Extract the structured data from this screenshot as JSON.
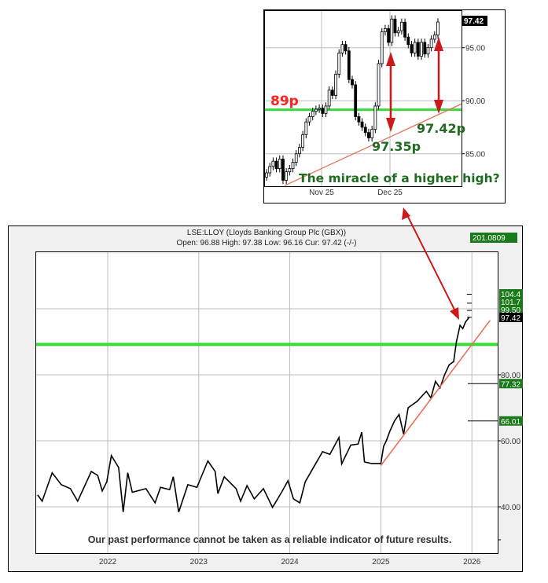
{
  "colors": {
    "support": "#33dd33",
    "trend": "#e8705a",
    "arrow": "#cc1a1a",
    "label_bg": "#1a7a1a",
    "annotation_green": "#1f6b1f",
    "annotation_red": "#ff2020"
  },
  "chart_data": [
    {
      "type": "candlestick",
      "title": "",
      "x_ticks": [
        "Nov 25",
        "Dec 25"
      ],
      "y_ticks": [
        "85.00",
        "90.00",
        "95.00"
      ],
      "ylim": [
        82,
        98.45
      ],
      "current_label": "97.42",
      "grid": true,
      "closes": [
        83.2,
        83.8,
        84.3,
        83.6,
        84.5,
        82.5,
        83.3,
        83.6,
        84.2,
        85,
        85.6,
        86.8,
        88,
        88.5,
        89,
        89.2,
        89.3,
        88.8,
        89.5,
        91,
        90.5,
        92.5,
        94.5,
        95.3,
        94.7,
        92,
        91.5,
        88.5,
        88,
        87.5,
        87,
        86.5,
        87.3,
        89.5,
        93.5,
        96.5,
        96.8,
        95.5,
        97.7,
        96.4,
        96.6,
        97.4,
        96,
        95.3,
        94.5,
        95.5,
        94.2,
        95.5,
        94.4,
        95,
        95.8,
        96.2,
        97.42
      ],
      "support_level": 89.15,
      "trend_line": {
        "start": 82.0,
        "end": 89.7
      },
      "annotations": {
        "support": "89p",
        "low1": "97.35p",
        "low2": "97.42p",
        "question": "The miracle of a higher high?"
      }
    },
    {
      "type": "line",
      "title": "LSE:LLOY (Lloyds Banking Group Plc (GBX))",
      "subtitle": "Open: 96.88 High: 97.38 Low: 96.16 Cur: 97.42 (-/-)",
      "x_ticks": [
        "2022",
        "2023",
        "2024",
        "2025",
        "2026"
      ],
      "y_ticks": [
        "40.00",
        "60.00",
        "80.00"
      ],
      "ylim": [
        25,
        117
      ],
      "grid": true,
      "corner_label": "201.0809",
      "level_labels": [
        "104.4",
        "101.7",
        "99.50",
        "97.42",
        "77.32",
        "66.01"
      ],
      "levels": [
        104.4,
        101.7,
        99.5,
        97.42,
        77.32,
        66.01
      ],
      "support_level": 89.2,
      "trend_line": {
        "x": [
          2025.0,
          2026.2
        ],
        "y": [
          52.5,
          96.5
        ]
      },
      "series": [
        {
          "x": [
            2021.23,
            2021.28,
            2021.39,
            2021.49,
            2021.59,
            2021.67,
            2021.82,
            2021.89,
            2021.94,
            2021.99,
            2022.04,
            2022.12,
            2022.17,
            2022.22,
            2022.27,
            2022.42,
            2022.52,
            2022.58,
            2022.68,
            2022.72,
            2022.78,
            2022.88,
            2022.98,
            2023.1,
            2023.18,
            2023.21,
            2023.28,
            2023.41,
            2023.46,
            2023.53,
            2023.61,
            2023.71,
            2023.81,
            2023.91,
            2023.98,
            2024.04,
            2024.11,
            2024.17,
            2024.27,
            2024.36,
            2024.44,
            2024.54,
            2024.57,
            2024.67,
            2024.75,
            2024.79,
            2024.82,
            2024.9,
            2025.0,
            2025.03,
            2025.06,
            2025.1,
            2025.15,
            2025.2,
            2025.25,
            2025.3,
            2025.4,
            2025.5,
            2025.55,
            2025.6,
            2025.65,
            2025.7,
            2025.75,
            2025.8,
            2025.83,
            2025.87,
            2025.9,
            2025.93,
            2025.97
          ],
          "y": [
            43.6,
            41.7,
            50.3,
            46.7,
            45.5,
            41.7,
            50.7,
            49.5,
            44.8,
            47.6,
            55.5,
            51.9,
            38.4,
            50.3,
            44.4,
            45.5,
            41.2,
            45.9,
            45.2,
            49.1,
            38.4,
            46.7,
            45.9,
            53.9,
            50.7,
            44,
            49.1,
            45.5,
            41.7,
            46.4,
            42.4,
            45.5,
            39.8,
            44.4,
            47.9,
            42.4,
            41.2,
            47.6,
            52.4,
            56.7,
            55.9,
            61,
            53,
            58.7,
            59,
            62.6,
            53.6,
            53.1,
            53.1,
            58.3,
            60,
            63,
            66,
            68,
            62,
            70,
            72,
            75,
            73,
            78,
            76,
            80,
            83,
            84,
            90,
            95,
            94,
            96,
            97.42
          ]
        }
      ],
      "disclaimer": "Our past performance cannot be taken as a reliable indicator of future results."
    }
  ]
}
